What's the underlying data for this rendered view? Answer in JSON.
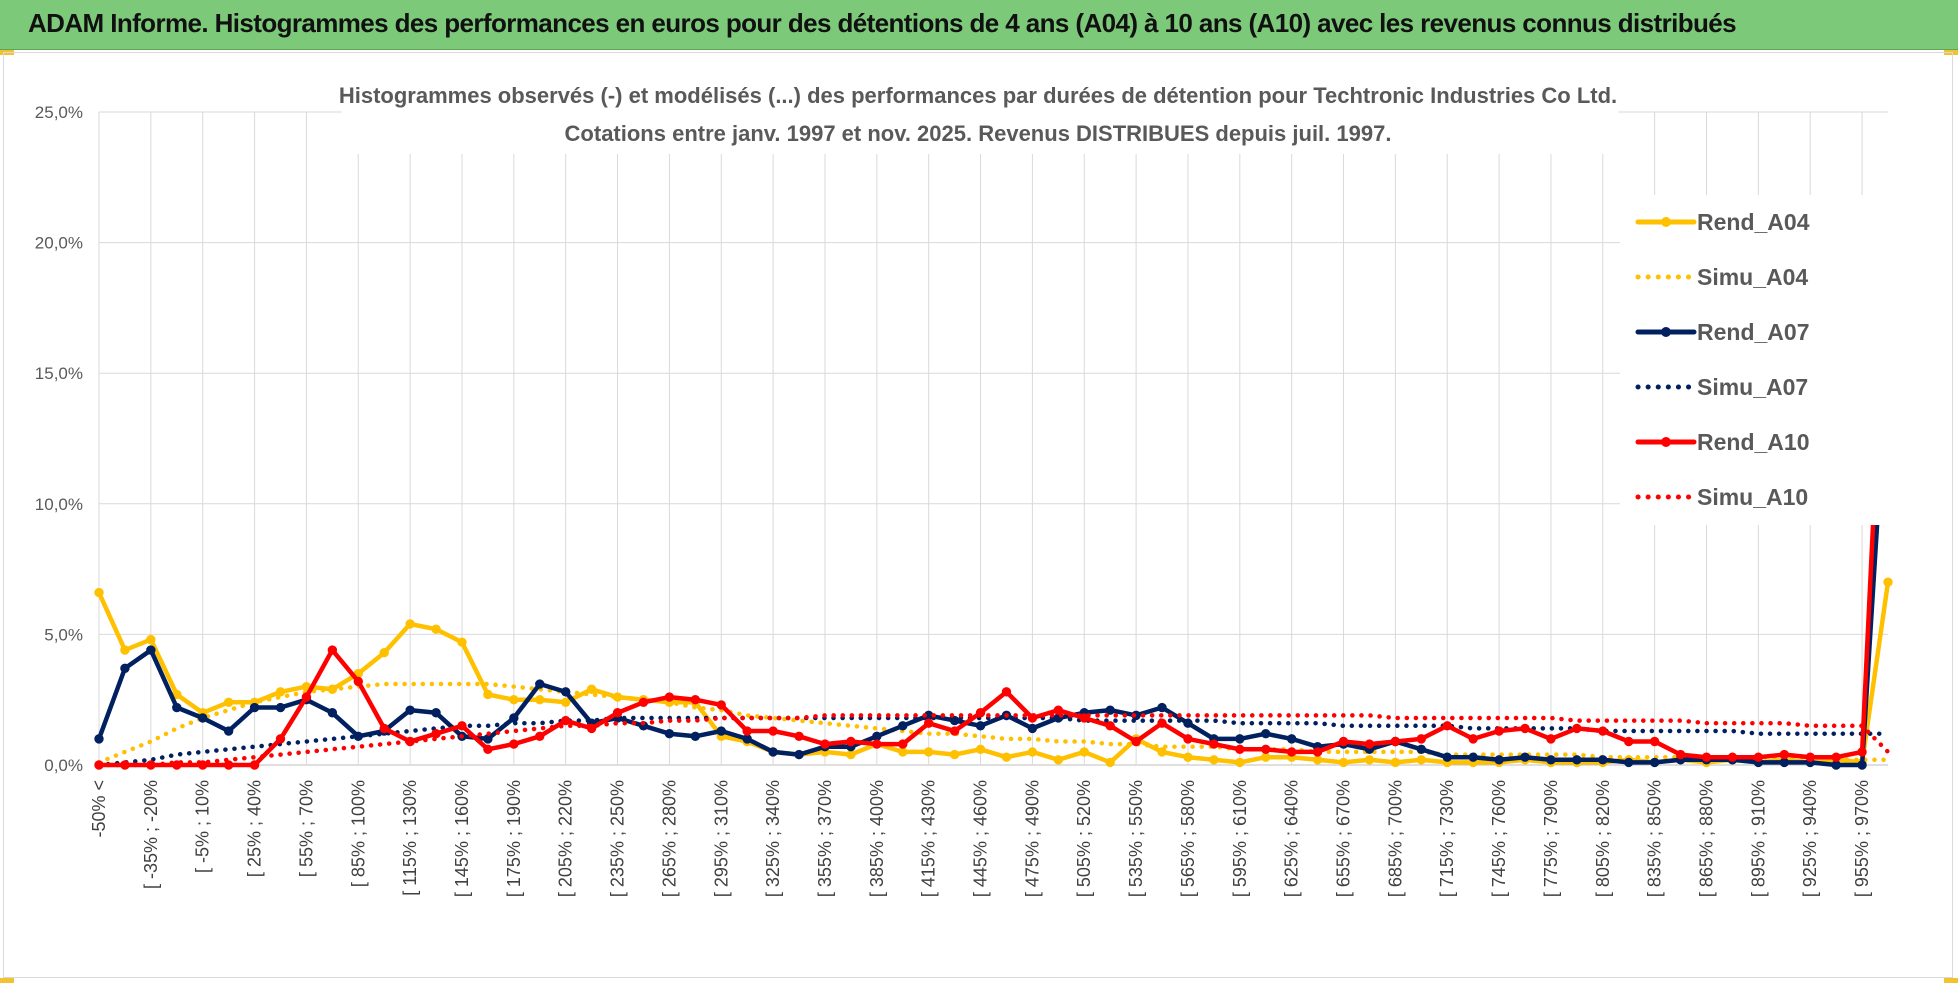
{
  "header": {
    "title": "ADAM Informe. Histogrammes des performances en euros pour des détentions de 4 ans (A04) à 10 ans (A10) avec les revenus connus distribués"
  },
  "colors": {
    "banner": "#7dc97a",
    "a04": "#ffc000",
    "a07": "#002060",
    "a10": "#ff0000",
    "grid": "#d9d9d9"
  },
  "chart_data": {
    "type": "line",
    "title": "Histogrammes observés (-) et modélisés (...) des performances par durées de détention pour Techtronic Industries Co Ltd.",
    "subtitle": "Cotations entre janv. 1997 et nov. 2025. Revenus DISTRIBUES depuis juil. 1997.",
    "xlabel": "",
    "ylabel": "",
    "ylim": [
      0,
      25
    ],
    "yticks": [
      "0,0%",
      "5,0%",
      "10,0%",
      "15,0%",
      "20,0%",
      "25,0%"
    ],
    "grid": true,
    "legend_position": "right",
    "x_tick_labels": [
      "-50% <",
      "[ -35% ; -20%",
      "[ -5% ; 10%",
      "[ 25% ; 40%",
      "[ 55% ; 70%",
      "[ 85% ; 100%",
      "[ 115% ; 130%",
      "[ 145% ; 160%",
      "[ 175% ; 190%",
      "[ 205% ; 220%",
      "[ 235% ; 250%",
      "[ 265% ; 280%",
      "[ 295% ; 310%",
      "[ 325% ; 340%",
      "[ 355% ; 370%",
      "[ 385% ; 400%",
      "[ 415% ; 430%",
      "[ 445% ; 460%",
      "[ 475% ; 490%",
      "[ 505% ; 520%",
      "[ 535% ; 550%",
      "[ 565% ; 580%",
      "[ 595% ; 610%",
      "[ 625% ; 640%",
      "[ 655% ; 670%",
      "[ 685% ; 700%",
      "[ 715% ; 730%",
      "[ 745% ; 760%",
      "[ 775% ; 790%",
      "[ 805% ; 820%",
      "[ 835% ; 850%",
      "[ 865% ; 880%",
      "[ 895% ; 910%",
      "[ 925% ; 940%",
      "[ 955% ; 970%"
    ],
    "x_tick_every": 2,
    "n_points": 70,
    "series": [
      {
        "name": "Rend_A04",
        "style": "solid",
        "markers": true,
        "color": "#ffc000",
        "values": [
          6.6,
          4.4,
          4.8,
          2.7,
          2.0,
          2.4,
          2.4,
          2.8,
          3.0,
          2.9,
          3.5,
          4.3,
          5.4,
          5.2,
          4.7,
          2.7,
          2.5,
          2.5,
          2.4,
          2.9,
          2.6,
          2.5,
          2.4,
          2.4,
          1.1,
          0.9,
          0.5,
          0.4,
          0.5,
          0.4,
          0.8,
          0.5,
          0.5,
          0.4,
          0.6,
          0.3,
          0.5,
          0.2,
          0.5,
          0.1,
          1.0,
          0.5,
          0.3,
          0.2,
          0.1,
          0.3,
          0.3,
          0.2,
          0.1,
          0.2,
          0.1,
          0.2,
          0.1,
          0.1,
          0.1,
          0.2,
          0.1,
          0.1,
          0.1,
          0.2,
          0.1,
          0.2,
          0.1,
          0.2,
          0.1,
          0.2,
          0.1,
          0.2,
          0.1,
          7.0
        ]
      },
      {
        "name": "Simu_A04",
        "style": "dotted",
        "markers": false,
        "color": "#ffc000",
        "values": [
          0.1,
          0.5,
          0.9,
          1.4,
          1.8,
          2.1,
          2.4,
          2.6,
          2.8,
          2.9,
          3.0,
          3.1,
          3.1,
          3.1,
          3.1,
          3.1,
          3.0,
          2.9,
          2.8,
          2.7,
          2.6,
          2.5,
          2.4,
          2.2,
          2.1,
          1.9,
          1.8,
          1.7,
          1.6,
          1.5,
          1.4,
          1.3,
          1.2,
          1.2,
          1.1,
          1.0,
          1.0,
          0.9,
          0.9,
          0.8,
          0.8,
          0.7,
          0.7,
          0.7,
          0.6,
          0.6,
          0.6,
          0.5,
          0.5,
          0.5,
          0.5,
          0.5,
          0.4,
          0.4,
          0.4,
          0.4,
          0.4,
          0.4,
          0.3,
          0.3,
          0.3,
          0.3,
          0.3,
          0.3,
          0.3,
          0.3,
          0.3,
          0.2,
          0.2,
          0.2
        ]
      },
      {
        "name": "Rend_A07",
        "style": "solid",
        "markers": true,
        "color": "#002060",
        "values": [
          1.0,
          3.7,
          4.4,
          2.2,
          1.8,
          1.3,
          2.2,
          2.2,
          2.5,
          2.0,
          1.1,
          1.3,
          2.1,
          2.0,
          1.1,
          1.0,
          1.8,
          3.1,
          2.8,
          1.6,
          1.8,
          1.5,
          1.2,
          1.1,
          1.3,
          1.0,
          0.5,
          0.4,
          0.7,
          0.7,
          1.1,
          1.5,
          1.9,
          1.7,
          1.5,
          1.9,
          1.4,
          1.8,
          2.0,
          2.1,
          1.9,
          2.2,
          1.6,
          1.0,
          1.0,
          1.2,
          1.0,
          0.7,
          0.8,
          0.6,
          0.9,
          0.6,
          0.3,
          0.3,
          0.2,
          0.3,
          0.2,
          0.2,
          0.2,
          0.1,
          0.1,
          0.2,
          0.2,
          0.2,
          0.1,
          0.1,
          0.1,
          0.0,
          0.0,
          15.9
        ]
      },
      {
        "name": "Simu_A07",
        "style": "dotted",
        "markers": false,
        "color": "#002060",
        "values": [
          0.0,
          0.1,
          0.2,
          0.4,
          0.5,
          0.6,
          0.7,
          0.8,
          0.9,
          1.0,
          1.1,
          1.2,
          1.3,
          1.4,
          1.5,
          1.5,
          1.6,
          1.6,
          1.7,
          1.7,
          1.8,
          1.8,
          1.8,
          1.8,
          1.8,
          1.8,
          1.8,
          1.8,
          1.8,
          1.8,
          1.8,
          1.8,
          1.8,
          1.8,
          1.8,
          1.8,
          1.8,
          1.8,
          1.7,
          1.7,
          1.7,
          1.7,
          1.7,
          1.7,
          1.6,
          1.6,
          1.6,
          1.6,
          1.5,
          1.5,
          1.5,
          1.5,
          1.5,
          1.4,
          1.4,
          1.4,
          1.4,
          1.4,
          1.3,
          1.3,
          1.3,
          1.3,
          1.3,
          1.3,
          1.2,
          1.2,
          1.2,
          1.2,
          1.2,
          1.2
        ]
      },
      {
        "name": "Rend_A10",
        "style": "solid",
        "markers": true,
        "color": "#ff0000",
        "values": [
          0.0,
          0.0,
          0.0,
          0.0,
          0.0,
          0.0,
          0.0,
          1.0,
          2.6,
          4.4,
          3.2,
          1.4,
          0.9,
          1.2,
          1.5,
          0.6,
          0.8,
          1.1,
          1.7,
          1.4,
          2.0,
          2.4,
          2.6,
          2.5,
          2.3,
          1.3,
          1.3,
          1.1,
          0.8,
          0.9,
          0.8,
          0.8,
          1.6,
          1.3,
          2.0,
          2.8,
          1.8,
          2.1,
          1.8,
          1.5,
          0.9,
          1.6,
          1.0,
          0.8,
          0.6,
          0.6,
          0.5,
          0.5,
          0.9,
          0.8,
          0.9,
          1.0,
          1.5,
          1.0,
          1.3,
          1.4,
          1.0,
          1.4,
          1.3,
          0.9,
          0.9,
          0.4,
          0.3,
          0.3,
          0.3,
          0.4,
          0.3,
          0.3,
          0.5,
          21.1
        ]
      },
      {
        "name": "Simu_A10",
        "style": "dotted",
        "markers": false,
        "color": "#ff0000",
        "values": [
          0.0,
          0.0,
          0.0,
          0.1,
          0.1,
          0.2,
          0.3,
          0.4,
          0.5,
          0.6,
          0.7,
          0.8,
          0.9,
          1.0,
          1.1,
          1.2,
          1.3,
          1.4,
          1.5,
          1.5,
          1.6,
          1.6,
          1.7,
          1.7,
          1.8,
          1.8,
          1.8,
          1.8,
          1.9,
          1.9,
          1.9,
          1.9,
          1.9,
          1.9,
          1.9,
          1.9,
          1.9,
          1.9,
          1.9,
          1.9,
          1.9,
          1.9,
          1.9,
          1.9,
          1.9,
          1.9,
          1.9,
          1.9,
          1.9,
          1.9,
          1.8,
          1.8,
          1.8,
          1.8,
          1.8,
          1.8,
          1.8,
          1.7,
          1.7,
          1.7,
          1.7,
          1.7,
          1.6,
          1.6,
          1.6,
          1.6,
          1.5,
          1.5,
          1.5,
          0.5
        ]
      }
    ]
  }
}
